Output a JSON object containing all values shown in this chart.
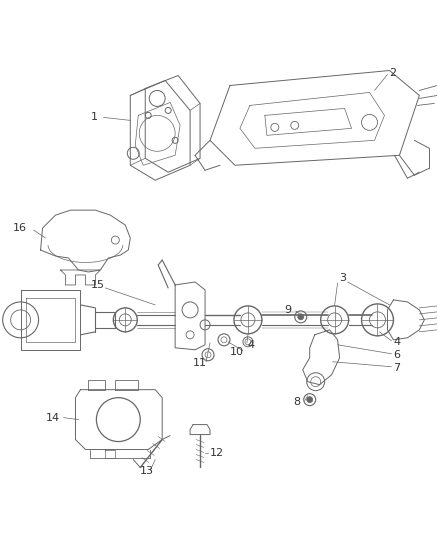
{
  "bg_color": "#ffffff",
  "line_color": "#666666",
  "label_color": "#333333",
  "fig_width": 4.38,
  "fig_height": 5.33,
  "dpi": 100
}
